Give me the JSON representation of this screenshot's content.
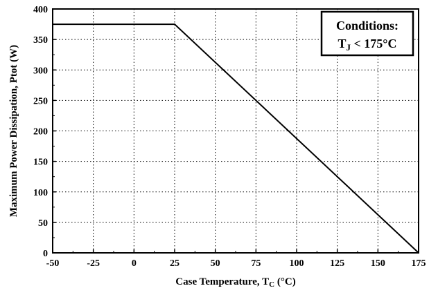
{
  "chart_data": {
    "type": "line",
    "x": [
      -50,
      25,
      175
    ],
    "series": [
      {
        "values": [
          375,
          375,
          0
        ]
      }
    ],
    "xlim": [
      -50,
      175
    ],
    "ylim": [
      0,
      400
    ],
    "x_ticks": [
      -50,
      -25,
      0,
      25,
      50,
      75,
      100,
      125,
      150,
      175
    ],
    "y_ticks": [
      0,
      50,
      100,
      150,
      200,
      250,
      300,
      350,
      400
    ],
    "grid": true,
    "grid_style": "dotted",
    "line_color": "#000000",
    "xlabel": {
      "text": "Case Temperature, T",
      "sub": "C",
      "unit": " (°C)"
    },
    "ylabel": "Maximum Power Dissipation, Ptot (W)",
    "annotation": {
      "placement": "top-right",
      "title": "Conditions:",
      "cond_main": "T",
      "cond_sub": "J",
      "cond_rest": " < 175°C"
    }
  }
}
